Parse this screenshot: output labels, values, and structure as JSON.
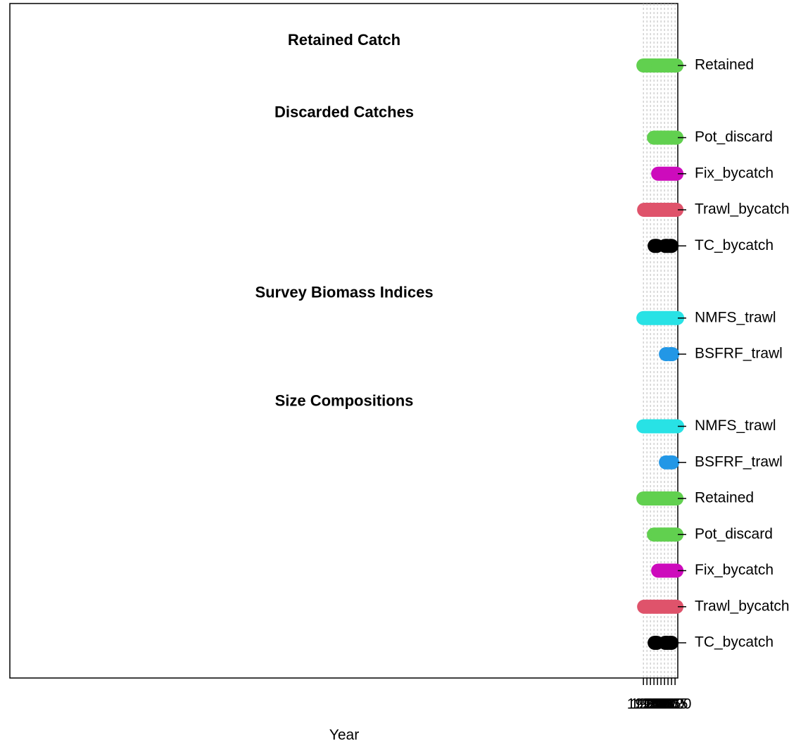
{
  "chart_data": {
    "type": "timeline",
    "xlabel": "Year",
    "xlim": [
      1073.95,
      2023.9
    ],
    "xticks": [
      1975,
      1980,
      1985,
      1990,
      1995,
      2000,
      2005,
      2010,
      2015,
      2020
    ],
    "grid": true,
    "sections": [
      {
        "title": "Retained Catch",
        "rows": [
          {
            "name": "Retained",
            "color": "#61D04F",
            "segments": [
              [
                1975,
                1982
              ],
              [
                1984,
                1993
              ],
              [
                1996,
                2022
              ]
            ]
          }
        ]
      },
      {
        "title": "Discarded Catches",
        "rows": [
          {
            "name": "Pot_discard",
            "color": "#61D04F",
            "segments": [
              [
                1990,
                1993
              ],
              [
                1996,
                2022
              ]
            ]
          },
          {
            "name": "Fix_bycatch",
            "color": "#CD0BBC",
            "segments": [
              [
                1996,
                2022
              ]
            ]
          },
          {
            "name": "Trawl_bycatch",
            "color": "#DF536B",
            "segments": [
              [
                1976,
                1992
              ],
              [
                1994,
                2022
              ]
            ]
          },
          {
            "name": "TC_bycatch",
            "color": "#000000",
            "segments": [
              [
                1991,
                1994
              ],
              [
                2006,
                2009
              ],
              [
                2013,
                2015
              ]
            ]
          }
        ]
      },
      {
        "title": "Survey Biomass Indices",
        "rows": [
          {
            "name": "NMFS_trawl",
            "color": "#28E2E5",
            "segments": [
              [
                1975,
                2019
              ],
              [
                2021,
                2023
              ]
            ]
          },
          {
            "name": "BSFRF_trawl",
            "color": "#2297E6",
            "segments": [
              [
                2007,
                2008
              ],
              [
                2013,
                2016
              ]
            ]
          }
        ]
      },
      {
        "title": "Size Compositions",
        "rows": [
          {
            "name": "NMFS_trawl",
            "color": "#28E2E5",
            "segments": [
              [
                1975,
                2019
              ],
              [
                2021,
                2023
              ]
            ]
          },
          {
            "name": "BSFRF_trawl",
            "color": "#2297E6",
            "segments": [
              [
                2007,
                2008
              ],
              [
                2013,
                2016
              ]
            ]
          },
          {
            "name": "Retained",
            "color": "#61D04F",
            "segments": [
              [
                1975,
                1982
              ],
              [
                1984,
                1993
              ],
              [
                1996,
                2022
              ]
            ]
          },
          {
            "name": "Pot_discard",
            "color": "#61D04F",
            "segments": [
              [
                1990,
                1993
              ],
              [
                1996,
                2022
              ]
            ]
          },
          {
            "name": "Fix_bycatch",
            "color": "#CD0BBC",
            "segments": [
              [
                1996,
                2022
              ]
            ]
          },
          {
            "name": "Trawl_bycatch",
            "color": "#DF536B",
            "segments": [
              [
                1976,
                1992
              ],
              [
                1994,
                2022
              ]
            ]
          },
          {
            "name": "TC_bycatch",
            "color": "#000000",
            "segments": [
              [
                1991,
                1994
              ],
              [
                2006,
                2009
              ],
              [
                2013,
                2015
              ]
            ]
          }
        ]
      }
    ]
  }
}
